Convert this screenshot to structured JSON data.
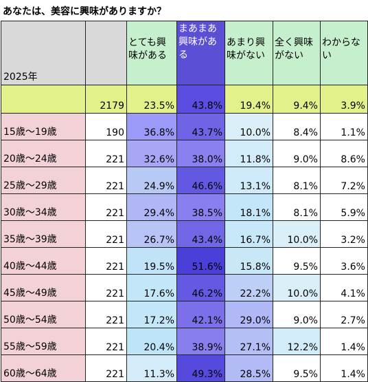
{
  "title": "あなたは、美容に興味がありますか？",
  "year_label": "2025年",
  "columns": [
    "とても興味がある",
    "まあまあ興味がある",
    "あまり興味がない",
    "全く興味がない",
    "わからない"
  ],
  "total": {
    "label": "",
    "n": "2179",
    "values": [
      "23.5%",
      "43.8%",
      "19.4%",
      "9.4%",
      "3.9%"
    ],
    "colors": [
      "#e4f08a",
      "#5a4de0",
      "#e4f08a",
      "#e4f08a",
      "#e4f08a"
    ]
  },
  "rows": [
    {
      "label": "15歳〜19歳",
      "n": "190",
      "values": [
        "36.8%",
        "43.7%",
        "10.0%",
        "8.4%",
        "1.1%"
      ],
      "colors": [
        "#9b9af8",
        "#6f64e6",
        "#dbeff9",
        "#ffffff",
        "#ffffff"
      ]
    },
    {
      "label": "20歳〜24歳",
      "n": "221",
      "values": [
        "32.6%",
        "38.0%",
        "11.8%",
        "9.0%",
        "8.6%"
      ],
      "colors": [
        "#a9a6f6",
        "#8b80ef",
        "#d3ecf9",
        "#ffffff",
        "#ffffff"
      ]
    },
    {
      "label": "25歳〜29歳",
      "n": "221",
      "values": [
        "24.9%",
        "46.6%",
        "13.1%",
        "8.1%",
        "7.2%"
      ],
      "colors": [
        "#b8c9f6",
        "#6258e2",
        "#cfeaf8",
        "#ffffff",
        "#ffffff"
      ]
    },
    {
      "label": "30歳〜34歳",
      "n": "221",
      "values": [
        "29.4%",
        "38.5%",
        "18.1%",
        "8.1%",
        "5.9%"
      ],
      "colors": [
        "#b0b6f6",
        "#8a7fef",
        "#c3e6f8",
        "#ffffff",
        "#ffffff"
      ]
    },
    {
      "label": "35歳〜39歳",
      "n": "221",
      "values": [
        "26.7%",
        "43.4%",
        "16.7%",
        "10.0%",
        "3.2%"
      ],
      "colors": [
        "#b8c4f6",
        "#7066e6",
        "#c6e8f8",
        "#dbeff9",
        "#ffffff"
      ]
    },
    {
      "label": "40歳〜44歳",
      "n": "221",
      "values": [
        "19.5%",
        "51.6%",
        "15.8%",
        "9.5%",
        "3.6%"
      ],
      "colors": [
        "#c0e3f8",
        "#4a3fd8",
        "#c8e8f8",
        "#ffffff",
        "#ffffff"
      ]
    },
    {
      "label": "45歳〜49歳",
      "n": "221",
      "values": [
        "17.6%",
        "46.2%",
        "22.2%",
        "10.0%",
        "4.1%"
      ],
      "colors": [
        "#c3e6f8",
        "#6359e2",
        "#bdcff6",
        "#dbeff9",
        "#ffffff"
      ]
    },
    {
      "label": "50歳〜54歳",
      "n": "221",
      "values": [
        "17.2%",
        "42.1%",
        "29.0%",
        "9.0%",
        "2.7%"
      ],
      "colors": [
        "#c3e6f8",
        "#7b70ea",
        "#b1b8f6",
        "#ffffff",
        "#ffffff"
      ]
    },
    {
      "label": "55歳〜59歳",
      "n": "221",
      "values": [
        "20.4%",
        "38.9%",
        "27.1%",
        "12.2%",
        "1.4%"
      ],
      "colors": [
        "#bee4f8",
        "#897eee",
        "#b4bff6",
        "#d3ecf9",
        "#ffffff"
      ]
    },
    {
      "label": "60歳〜64歳",
      "n": "221",
      "values": [
        "11.3%",
        "49.3%",
        "28.5%",
        "9.5%",
        "1.4%"
      ],
      "colors": [
        "#d4ecf9",
        "#564ade",
        "#b2bbf6",
        "#ffffff",
        "#ffffff"
      ]
    }
  ]
}
